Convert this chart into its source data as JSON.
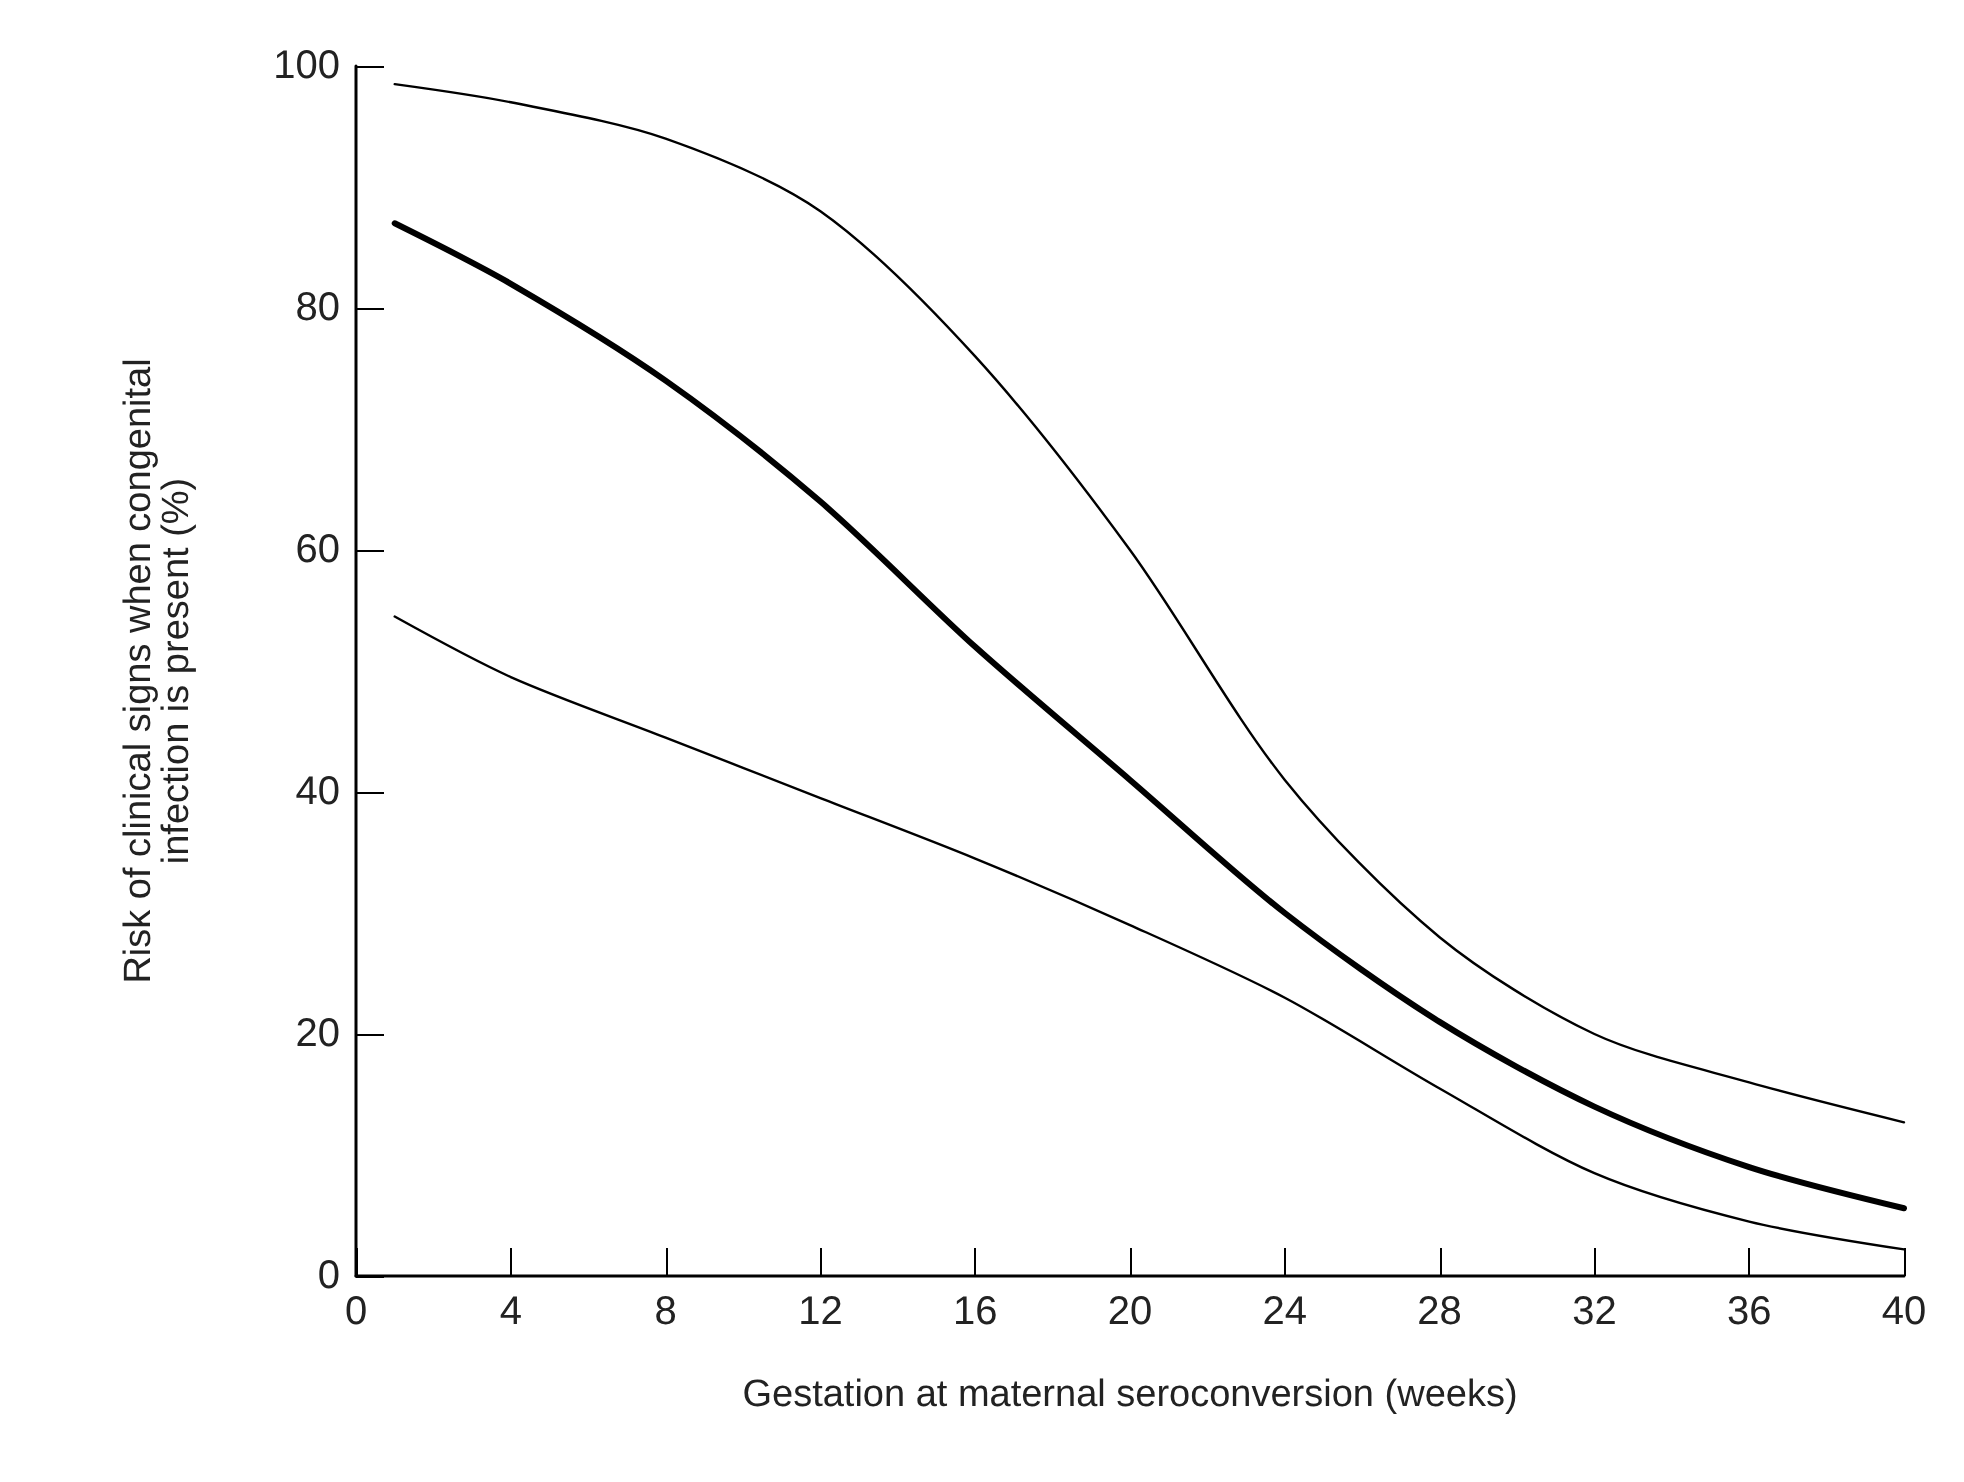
{
  "chart_data": {
    "type": "line",
    "xlabel": "Gestation at maternal seroconversion (weeks)",
    "ylabel": "Risk of clinical signs when congenital\ninfection is present (%)",
    "x": [
      1,
      4,
      8,
      12,
      16,
      20,
      24,
      28,
      32,
      36,
      40
    ],
    "series": [
      {
        "color": "#000000",
        "values": [
          87,
          82,
          74,
          64,
          52,
          41,
          30,
          21,
          14,
          9,
          5.6
        ]
      },
      {
        "color": "#000000",
        "values": [
          98.5,
          97,
          94,
          88,
          76,
          60,
          41,
          28,
          20,
          16,
          12.7
        ]
      },
      {
        "color": "#000000",
        "values": [
          54.5,
          49.5,
          44.5,
          39.5,
          34.5,
          29,
          23,
          15.5,
          8.5,
          4.5,
          2.2
        ]
      }
    ],
    "xlim": [
      0,
      40
    ],
    "xticks": [
      0,
      4,
      8,
      12,
      16,
      20,
      24,
      28,
      32,
      36,
      40
    ],
    "ylim": [
      0,
      100
    ],
    "yticks": [
      0,
      20,
      40,
      60,
      80,
      100
    ],
    "grid": false,
    "marker": "none",
    "line_style": "solid"
  }
}
